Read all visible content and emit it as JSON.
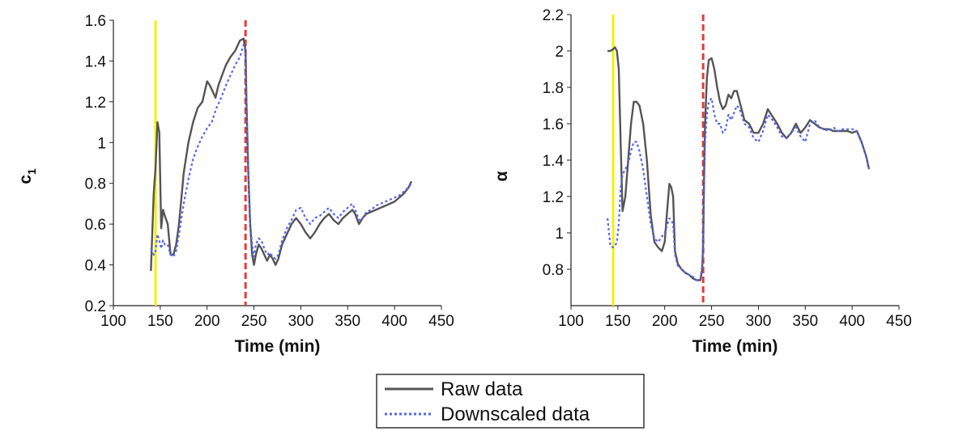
{
  "chart_data": [
    {
      "type": "line",
      "xlabel": "Time (min)",
      "ylabel": "c",
      "ylabel_subscript": "1",
      "xlim": [
        100,
        450
      ],
      "ylim": [
        0.2,
        1.6
      ],
      "xticks": [
        "100",
        "150",
        "200",
        "250",
        "300",
        "350",
        "400",
        "450"
      ],
      "yticks": [
        "0.2",
        "0.4",
        "0.6",
        "0.8",
        "1",
        "1.2",
        "1.4",
        "1.6"
      ],
      "grid": false,
      "markers": [
        {
          "x": 145,
          "color": "#f2f200",
          "style": "solid"
        },
        {
          "x": 241,
          "color": "#e63b3b",
          "style": "dashed"
        }
      ],
      "series": [
        {
          "name": "Raw data",
          "color": "#555555",
          "style": "solid",
          "x": [
            140,
            143,
            145,
            147,
            149,
            151,
            153,
            155,
            158,
            161,
            164,
            167,
            170,
            175,
            180,
            185,
            190,
            195,
            200,
            203,
            206,
            209,
            212,
            216,
            220,
            225,
            230,
            235,
            239,
            241,
            242,
            244,
            246,
            248,
            250,
            252,
            255,
            258,
            261,
            264,
            267,
            270,
            273,
            276,
            280,
            285,
            290,
            295,
            300,
            305,
            310,
            315,
            320,
            325,
            330,
            335,
            340,
            345,
            350,
            355,
            358,
            362,
            366,
            370,
            375,
            380,
            385,
            390,
            395,
            400,
            405,
            410,
            415,
            418
          ],
          "y": [
            0.37,
            0.75,
            0.88,
            1.1,
            1.05,
            0.58,
            0.67,
            0.64,
            0.6,
            0.45,
            0.45,
            0.5,
            0.6,
            0.85,
            1.0,
            1.1,
            1.17,
            1.2,
            1.3,
            1.28,
            1.25,
            1.22,
            1.28,
            1.33,
            1.38,
            1.42,
            1.45,
            1.5,
            1.51,
            1.45,
            1.2,
            0.85,
            0.6,
            0.45,
            0.4,
            0.45,
            0.5,
            0.48,
            0.45,
            0.42,
            0.45,
            0.43,
            0.4,
            0.43,
            0.5,
            0.55,
            0.6,
            0.63,
            0.6,
            0.56,
            0.53,
            0.56,
            0.6,
            0.63,
            0.65,
            0.62,
            0.6,
            0.63,
            0.65,
            0.67,
            0.65,
            0.6,
            0.63,
            0.65,
            0.66,
            0.67,
            0.68,
            0.69,
            0.7,
            0.71,
            0.73,
            0.75,
            0.78,
            0.81
          ]
        },
        {
          "name": "Downscaled data",
          "color": "#5566ee",
          "style": "dotted",
          "x": [
            140,
            143,
            145,
            147,
            149,
            151,
            153,
            155,
            158,
            161,
            164,
            167,
            170,
            175,
            180,
            185,
            190,
            195,
            200,
            205,
            210,
            215,
            220,
            225,
            230,
            235,
            239,
            241,
            242,
            244,
            246,
            248,
            250,
            252,
            255,
            258,
            261,
            264,
            267,
            270,
            273,
            276,
            280,
            285,
            290,
            295,
            300,
            305,
            310,
            315,
            320,
            325,
            330,
            335,
            340,
            345,
            350,
            355,
            358,
            362,
            366,
            370,
            375,
            380,
            385,
            390,
            395,
            400,
            405,
            410,
            415,
            418
          ],
          "y": [
            0.48,
            0.45,
            0.47,
            0.55,
            0.52,
            0.48,
            0.52,
            0.5,
            0.5,
            0.45,
            0.44,
            0.47,
            0.55,
            0.7,
            0.82,
            0.92,
            0.98,
            1.03,
            1.07,
            1.1,
            1.17,
            1.22,
            1.28,
            1.33,
            1.38,
            1.42,
            1.48,
            1.45,
            1.2,
            0.85,
            0.6,
            0.5,
            0.44,
            0.5,
            0.53,
            0.52,
            0.48,
            0.45,
            0.46,
            0.44,
            0.43,
            0.45,
            0.52,
            0.58,
            0.62,
            0.67,
            0.68,
            0.63,
            0.6,
            0.63,
            0.64,
            0.66,
            0.68,
            0.65,
            0.63,
            0.66,
            0.68,
            0.7,
            0.67,
            0.62,
            0.63,
            0.66,
            0.67,
            0.69,
            0.7,
            0.71,
            0.72,
            0.73,
            0.74,
            0.76,
            0.78,
            0.8
          ]
        }
      ]
    },
    {
      "type": "line",
      "xlabel": "Time (min)",
      "ylabel": "α",
      "xlim": [
        100,
        450
      ],
      "ylim": [
        0.6,
        2.2
      ],
      "xticks": [
        "100",
        "150",
        "200",
        "250",
        "300",
        "350",
        "400",
        "450"
      ],
      "yticks": [
        "0.8",
        "1",
        "1.2",
        "1.4",
        "1.6",
        "1.8",
        "2",
        "2.2"
      ],
      "grid": false,
      "markers": [
        {
          "x": 145,
          "color": "#f2f200",
          "style": "solid"
        },
        {
          "x": 241,
          "color": "#e63b3b",
          "style": "dashed"
        }
      ],
      "series": [
        {
          "name": "Raw data",
          "color": "#555555",
          "style": "solid",
          "x": [
            139,
            142,
            145,
            147,
            149,
            151,
            153,
            155,
            158,
            161,
            164,
            167,
            170,
            173,
            177,
            181,
            185,
            189,
            193,
            197,
            200,
            203,
            205,
            207,
            209,
            211,
            214,
            218,
            222,
            226,
            230,
            234,
            238,
            240,
            241,
            242,
            243,
            245,
            247,
            250,
            253,
            256,
            259,
            262,
            265,
            268,
            271,
            274,
            277,
            280,
            285,
            290,
            295,
            300,
            305,
            310,
            315,
            320,
            325,
            330,
            335,
            340,
            345,
            350,
            355,
            360,
            365,
            370,
            375,
            380,
            385,
            390,
            395,
            400,
            405,
            410,
            415,
            418
          ],
          "y": [
            2.0,
            2.0,
            2.01,
            2.02,
            2.0,
            1.9,
            1.5,
            1.12,
            1.2,
            1.4,
            1.6,
            1.72,
            1.72,
            1.7,
            1.6,
            1.4,
            1.1,
            0.95,
            0.92,
            0.9,
            0.95,
            1.15,
            1.27,
            1.25,
            1.2,
            0.9,
            0.83,
            0.8,
            0.78,
            0.77,
            0.75,
            0.74,
            0.74,
            0.8,
            0.95,
            1.3,
            1.6,
            1.85,
            1.95,
            1.96,
            1.9,
            1.8,
            1.72,
            1.68,
            1.7,
            1.76,
            1.74,
            1.78,
            1.78,
            1.72,
            1.62,
            1.6,
            1.55,
            1.55,
            1.6,
            1.68,
            1.64,
            1.6,
            1.55,
            1.52,
            1.55,
            1.6,
            1.55,
            1.58,
            1.62,
            1.6,
            1.58,
            1.57,
            1.57,
            1.56,
            1.56,
            1.56,
            1.56,
            1.55,
            1.56,
            1.5,
            1.42,
            1.35
          ]
        },
        {
          "name": "Downscaled data",
          "color": "#5566ee",
          "style": "dotted",
          "x": [
            139,
            142,
            145,
            147,
            149,
            151,
            153,
            155,
            158,
            161,
            164,
            167,
            170,
            173,
            177,
            181,
            185,
            189,
            193,
            197,
            200,
            203,
            205,
            207,
            209,
            211,
            214,
            218,
            222,
            226,
            230,
            234,
            238,
            240,
            241,
            242,
            243,
            245,
            247,
            250,
            253,
            256,
            259,
            262,
            265,
            268,
            271,
            274,
            277,
            280,
            285,
            290,
            295,
            300,
            305,
            310,
            315,
            320,
            325,
            330,
            335,
            340,
            345,
            350,
            355,
            360,
            365,
            370,
            375,
            380,
            385,
            390,
            395,
            400,
            405,
            410,
            415,
            418
          ],
          "y": [
            1.08,
            0.93,
            0.92,
            0.93,
            0.95,
            1.05,
            1.25,
            1.32,
            1.35,
            1.38,
            1.45,
            1.5,
            1.5,
            1.45,
            1.35,
            1.2,
            1.05,
            0.97,
            0.95,
            0.98,
            1.0,
            1.05,
            1.08,
            1.07,
            1.05,
            0.88,
            0.82,
            0.8,
            0.78,
            0.77,
            0.76,
            0.74,
            0.75,
            0.82,
            0.95,
            1.25,
            1.5,
            1.65,
            1.72,
            1.74,
            1.65,
            1.6,
            1.6,
            1.55,
            1.57,
            1.65,
            1.62,
            1.66,
            1.7,
            1.68,
            1.6,
            1.58,
            1.52,
            1.5,
            1.56,
            1.65,
            1.62,
            1.58,
            1.53,
            1.52,
            1.55,
            1.58,
            1.53,
            1.5,
            1.6,
            1.62,
            1.58,
            1.57,
            1.56,
            1.58,
            1.56,
            1.57,
            1.57,
            1.57,
            1.56,
            1.5,
            1.42,
            1.35
          ]
        }
      ]
    }
  ],
  "legend": {
    "items": [
      {
        "label": "Raw data",
        "color": "#555555",
        "style": "solid"
      },
      {
        "label": "Downscaled data",
        "color": "#5566ee",
        "style": "dotted"
      }
    ]
  }
}
